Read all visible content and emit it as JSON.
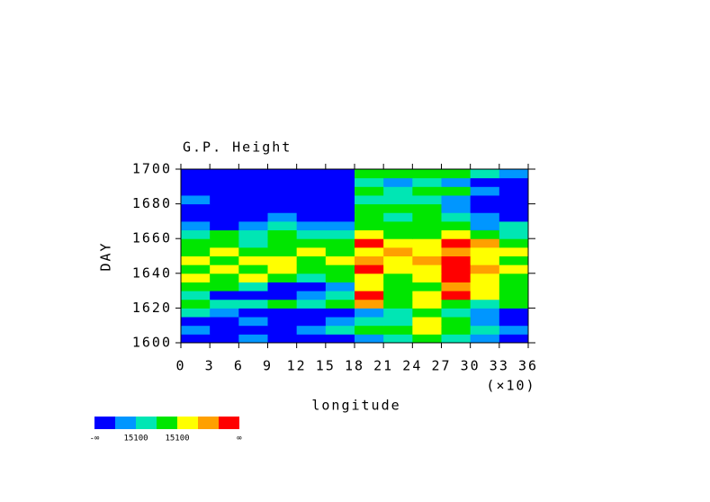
{
  "chart_data": {
    "type": "heatmap",
    "title": "G.P. Height",
    "x_label": "longitude",
    "x_multiplier": "(×10)",
    "y_label": "DAY",
    "xlim": [
      0,
      36
    ],
    "ylim": [
      1600,
      1700
    ],
    "xticks": [
      0,
      3,
      6,
      9,
      12,
      15,
      18,
      21,
      24,
      27,
      30,
      33,
      36
    ],
    "yticks": [
      1600,
      1620,
      1640,
      1660,
      1680,
      1700
    ],
    "xbins": [
      0,
      3,
      6,
      9,
      12,
      15,
      18,
      21,
      24,
      27,
      30,
      33,
      36
    ],
    "ybins": [
      1600,
      1605,
      1610,
      1615,
      1620,
      1625,
      1630,
      1635,
      1640,
      1645,
      1650,
      1655,
      1660,
      1665,
      1670,
      1675,
      1680,
      1685,
      1690,
      1695,
      1700
    ],
    "z": [
      [
        0,
        0,
        1,
        0,
        0,
        0,
        1,
        2,
        3,
        2,
        1,
        0
      ],
      [
        1,
        0,
        0,
        0,
        1,
        2,
        3,
        3,
        4,
        3,
        2,
        1
      ],
      [
        0,
        0,
        1,
        0,
        0,
        1,
        2,
        2,
        4,
        3,
        1,
        0
      ],
      [
        2,
        1,
        0,
        0,
        0,
        0,
        1,
        2,
        3,
        2,
        1,
        0
      ],
      [
        3,
        2,
        2,
        3,
        2,
        3,
        5,
        3,
        4,
        3,
        2,
        3
      ],
      [
        2,
        0,
        0,
        0,
        1,
        2,
        6,
        3,
        4,
        6,
        4,
        3
      ],
      [
        3,
        3,
        2,
        0,
        0,
        1,
        4,
        3,
        3,
        5,
        4,
        3
      ],
      [
        4,
        3,
        4,
        3,
        2,
        3,
        4,
        3,
        4,
        6,
        4,
        3
      ],
      [
        3,
        4,
        3,
        4,
        3,
        3,
        6,
        4,
        4,
        6,
        5,
        4
      ],
      [
        4,
        3,
        4,
        4,
        3,
        4,
        5,
        4,
        5,
        6,
        4,
        3
      ],
      [
        3,
        4,
        3,
        3,
        4,
        3,
        4,
        5,
        4,
        5,
        4,
        4
      ],
      [
        3,
        3,
        2,
        3,
        3,
        3,
        6,
        4,
        4,
        6,
        5,
        3
      ],
      [
        2,
        3,
        2,
        3,
        2,
        2,
        4,
        3,
        3,
        4,
        3,
        2
      ],
      [
        1,
        0,
        1,
        2,
        1,
        1,
        3,
        3,
        3,
        3,
        1,
        2
      ],
      [
        0,
        0,
        0,
        1,
        0,
        0,
        3,
        2,
        3,
        2,
        1,
        0
      ],
      [
        0,
        0,
        0,
        0,
        0,
        0,
        3,
        3,
        3,
        1,
        0,
        0
      ],
      [
        1,
        0,
        0,
        0,
        0,
        0,
        2,
        2,
        2,
        1,
        0,
        0
      ],
      [
        0,
        0,
        0,
        0,
        0,
        0,
        3,
        2,
        3,
        3,
        1,
        0
      ],
      [
        0,
        0,
        0,
        0,
        0,
        0,
        2,
        1,
        2,
        1,
        0,
        0
      ],
      [
        0,
        0,
        0,
        0,
        0,
        0,
        3,
        3,
        3,
        3,
        2,
        1
      ]
    ],
    "colorbar": {
      "colors": [
        "#0000ff",
        "#0096ff",
        "#00e6b4",
        "#00e600",
        "#ffff00",
        "#ffa000",
        "#ff0000"
      ],
      "labels": [
        "-∞",
        "15100",
        "15100",
        "∞"
      ]
    }
  }
}
